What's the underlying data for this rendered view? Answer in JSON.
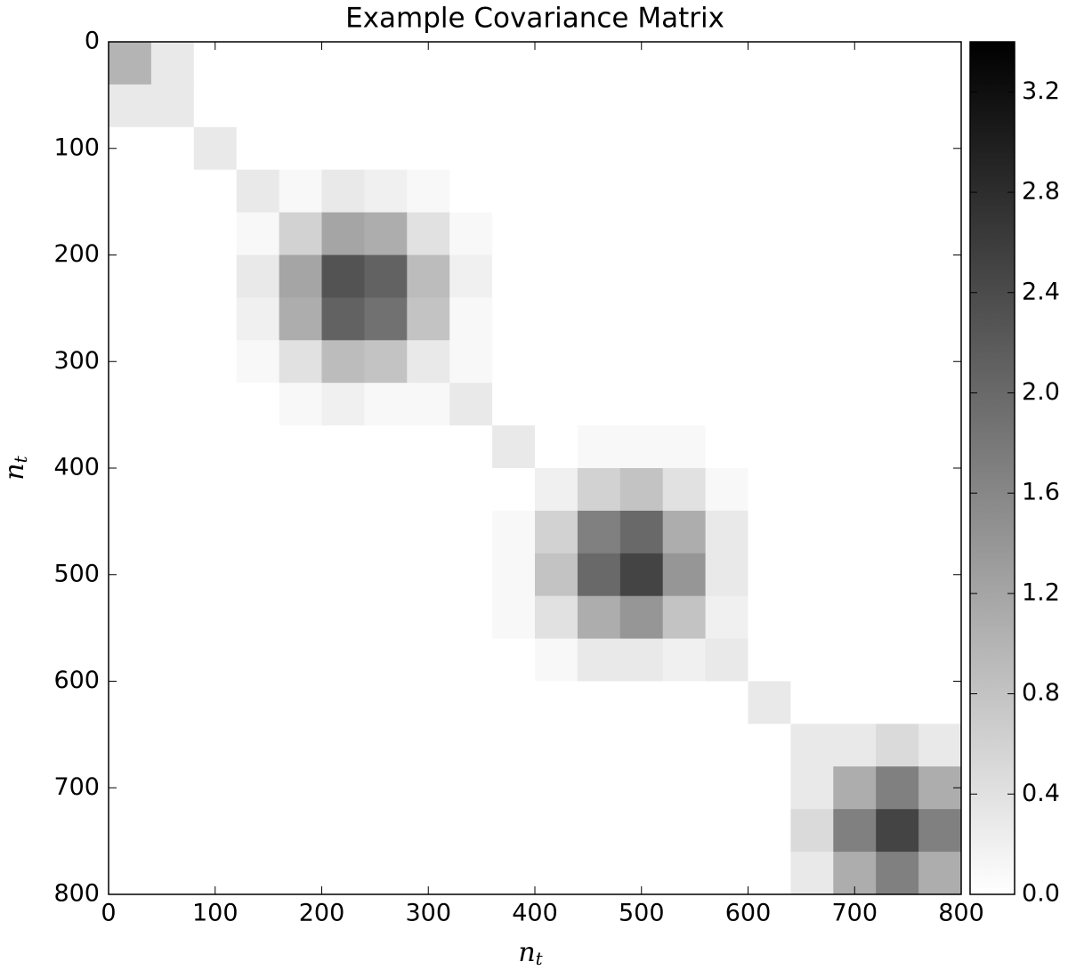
{
  "chart_data": {
    "type": "heatmap",
    "title": "Example Covariance Matrix",
    "xlabel": "n",
    "xlabel_sub": "t",
    "ylabel": "n",
    "ylabel_sub": "t",
    "xlim": [
      0,
      800
    ],
    "xticks": [
      0,
      100,
      200,
      300,
      400,
      500,
      600,
      700,
      800
    ],
    "ylim": [
      800,
      0
    ],
    "yticks": [
      0,
      100,
      200,
      300,
      400,
      500,
      600,
      700,
      800
    ],
    "clim": [
      0,
      3.4
    ],
    "cticks": [
      {
        "value": 0,
        "label": "0.0"
      },
      0.4,
      0.8,
      1.2,
      1.6,
      {
        "value": 2,
        "label": "2.0"
      },
      2.4,
      2.8,
      3.2
    ],
    "colormap": [
      "#ffffff",
      "#000000"
    ],
    "z": [
      [
        1.0,
        0.3,
        0,
        0,
        0,
        0,
        0,
        0,
        0,
        0,
        0,
        0,
        0,
        0,
        0,
        0,
        0,
        0,
        0,
        0
      ],
      [
        0.3,
        0.3,
        0,
        0,
        0,
        0,
        0,
        0,
        0,
        0,
        0,
        0,
        0,
        0,
        0,
        0,
        0,
        0,
        0,
        0
      ],
      [
        0,
        0,
        0.3,
        0,
        0,
        0,
        0,
        0,
        0,
        0,
        0,
        0,
        0,
        0,
        0,
        0,
        0,
        0,
        0,
        0
      ],
      [
        0,
        0,
        0,
        0.3,
        0.1,
        0.3,
        0.2,
        0.1,
        0,
        0,
        0,
        0,
        0,
        0,
        0,
        0,
        0,
        0,
        0,
        0
      ],
      [
        0,
        0,
        0,
        0.1,
        0.6,
        1.2,
        1.1,
        0.4,
        0.1,
        0,
        0,
        0,
        0,
        0,
        0,
        0,
        0,
        0,
        0,
        0
      ],
      [
        0,
        0,
        0,
        0.3,
        1.2,
        2.3,
        2.1,
        0.9,
        0.2,
        0,
        0,
        0,
        0,
        0,
        0,
        0,
        0,
        0,
        0,
        0
      ],
      [
        0,
        0,
        0,
        0.2,
        1.1,
        2.1,
        1.9,
        0.8,
        0.1,
        0,
        0,
        0,
        0,
        0,
        0,
        0,
        0,
        0,
        0,
        0
      ],
      [
        0,
        0,
        0,
        0.1,
        0.4,
        0.9,
        0.8,
        0.3,
        0.1,
        0,
        0,
        0,
        0,
        0,
        0,
        0,
        0,
        0,
        0,
        0
      ],
      [
        0,
        0,
        0,
        0,
        0.1,
        0.2,
        0.1,
        0.1,
        0.3,
        0,
        0,
        0,
        0,
        0,
        0,
        0,
        0,
        0,
        0,
        0
      ],
      [
        0,
        0,
        0,
        0,
        0,
        0,
        0,
        0,
        0,
        0.3,
        0,
        0.1,
        0.1,
        0.1,
        0,
        0,
        0,
        0,
        0,
        0
      ],
      [
        0,
        0,
        0,
        0,
        0,
        0,
        0,
        0,
        0,
        0,
        0.2,
        0.6,
        0.8,
        0.4,
        0.1,
        0,
        0,
        0,
        0,
        0
      ],
      [
        0,
        0,
        0,
        0,
        0,
        0,
        0,
        0,
        0,
        0.1,
        0.6,
        1.7,
        2.0,
        1.1,
        0.3,
        0,
        0,
        0,
        0,
        0
      ],
      [
        0,
        0,
        0,
        0,
        0,
        0,
        0,
        0,
        0,
        0.1,
        0.8,
        2.0,
        2.5,
        1.4,
        0.3,
        0,
        0,
        0,
        0,
        0
      ],
      [
        0,
        0,
        0,
        0,
        0,
        0,
        0,
        0,
        0,
        0.1,
        0.4,
        1.1,
        1.4,
        0.8,
        0.2,
        0,
        0,
        0,
        0,
        0
      ],
      [
        0,
        0,
        0,
        0,
        0,
        0,
        0,
        0,
        0,
        0,
        0.1,
        0.3,
        0.3,
        0.2,
        0.3,
        0,
        0,
        0,
        0,
        0
      ],
      [
        0,
        0,
        0,
        0,
        0,
        0,
        0,
        0,
        0,
        0,
        0,
        0,
        0,
        0,
        0,
        0.3,
        0,
        0,
        0,
        0
      ],
      [
        0,
        0,
        0,
        0,
        0,
        0,
        0,
        0,
        0,
        0,
        0,
        0,
        0,
        0,
        0,
        0,
        0.3,
        0.3,
        0.5,
        0.3
      ],
      [
        0,
        0,
        0,
        0,
        0,
        0,
        0,
        0,
        0,
        0,
        0,
        0,
        0,
        0,
        0,
        0,
        0.3,
        1.1,
        1.7,
        1.1
      ],
      [
        0,
        0,
        0,
        0,
        0,
        0,
        0,
        0,
        0,
        0,
        0,
        0,
        0,
        0,
        0,
        0,
        0.5,
        1.7,
        2.5,
        1.7
      ],
      [
        0,
        0,
        0,
        0,
        0,
        0,
        0,
        0,
        0,
        0,
        0,
        0,
        0,
        0,
        0,
        0,
        0.3,
        1.1,
        1.7,
        1.1
      ]
    ]
  }
}
